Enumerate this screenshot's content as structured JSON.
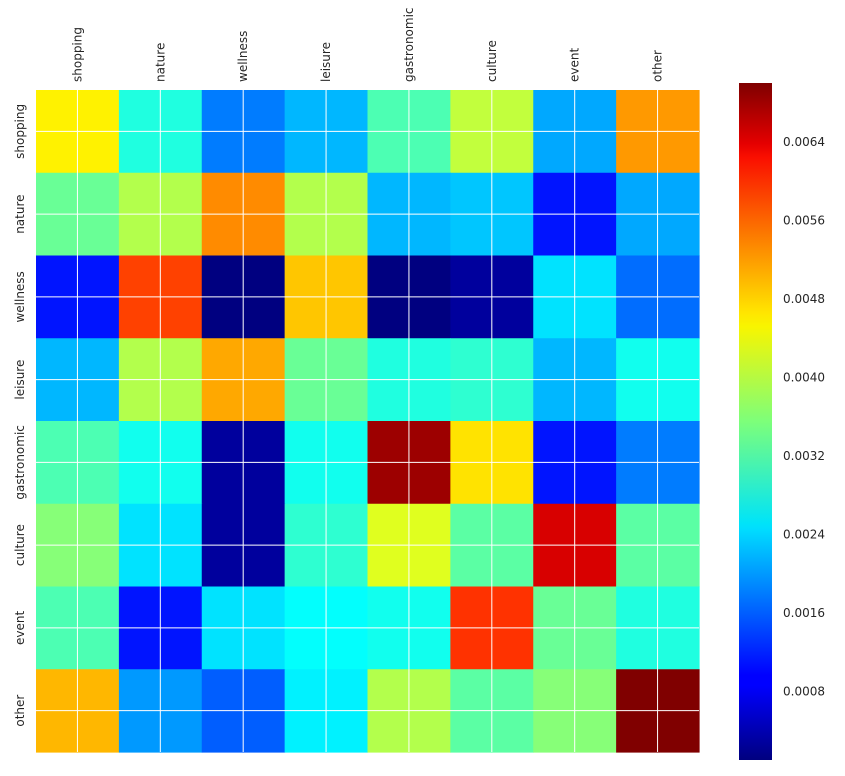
{
  "chart_data": {
    "type": "heatmap",
    "title": "",
    "xlabel": "",
    "ylabel": "",
    "x_categories": [
      "shopping",
      "nature",
      "wellness",
      "leisure",
      "gastronomic",
      "culture",
      "event",
      "other"
    ],
    "y_categories": [
      "shopping",
      "nature",
      "wellness",
      "leisure",
      "gastronomic",
      "culture",
      "event",
      "other"
    ],
    "colormap": "jet",
    "vmin": 0.0001,
    "vmax": 0.007,
    "grid": true,
    "values": [
      [
        0.0045,
        0.0029,
        0.0018,
        0.0022,
        0.0032,
        0.004,
        0.0021,
        0.0051
      ],
      [
        0.0034,
        0.0039,
        0.0052,
        0.0039,
        0.0022,
        0.0023,
        0.0011,
        0.0021
      ],
      [
        0.0011,
        0.0057,
        0.0001,
        0.0048,
        0.0001,
        0.0003,
        0.0025,
        0.0017
      ],
      [
        0.0022,
        0.0039,
        0.005,
        0.0034,
        0.0029,
        0.003,
        0.0022,
        0.0028
      ],
      [
        0.0032,
        0.0028,
        0.0003,
        0.0028,
        0.0068,
        0.0046,
        0.0011,
        0.0018
      ],
      [
        0.0036,
        0.0025,
        0.0003,
        0.003,
        0.0042,
        0.0033,
        0.0064,
        0.0033
      ],
      [
        0.0032,
        0.0011,
        0.0025,
        0.0027,
        0.0028,
        0.0058,
        0.0034,
        0.0029
      ],
      [
        0.0049,
        0.002,
        0.0016,
        0.0026,
        0.0039,
        0.0033,
        0.0036,
        0.0071
      ]
    ],
    "colorbar": {
      "ticks": [
        0.0008,
        0.0016,
        0.0024,
        0.0032,
        0.004,
        0.0048,
        0.0056,
        0.0064
      ],
      "tick_labels": [
        "0.0008",
        "0.0016",
        "0.0024",
        "0.0032",
        "0.0040",
        "0.0048",
        "0.0056",
        "0.0064"
      ]
    }
  }
}
